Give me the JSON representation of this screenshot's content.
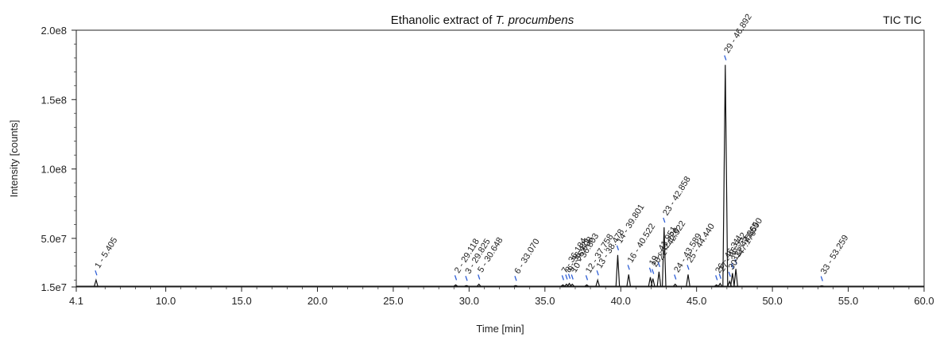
{
  "chart_data": {
    "type": "line",
    "title": "Ethanolic extract of ",
    "title_italic": "T. procumbens",
    "trace_label": "TIC TIC",
    "xlabel": "Time [min]",
    "ylabel": "Intensity [counts]",
    "xlim": [
      4.1,
      60.0
    ],
    "ylim": [
      15000000,
      200000000
    ],
    "x_ticks": [
      4.1,
      10.0,
      15.0,
      20.0,
      25.0,
      30.0,
      35.0,
      40.0,
      45.0,
      50.0,
      55.0,
      60.0
    ],
    "x_tick_labels": [
      "4.1",
      "10.0",
      "15.0",
      "20.0",
      "25.0",
      "30.0",
      "35.0",
      "40.0",
      "45.0",
      "50.0",
      "55.0",
      "60.0"
    ],
    "y_ticks": [
      15000000,
      50000000,
      100000000,
      150000000,
      200000000
    ],
    "y_tick_labels": [
      "1.5e7",
      "5.0e7",
      "1.0e8",
      "1.5e8",
      "2.0e8"
    ],
    "grid": false,
    "colors": {
      "trace": "#111111",
      "marker": "#2f5fd6",
      "axis": "#222222"
    },
    "peaks": [
      {
        "id": "1",
        "rt": 5.405,
        "label": "1 - 5.405",
        "height": 20000000
      },
      {
        "id": "2",
        "rt": 29.118,
        "label": "2 - 29.118",
        "height": 16500000
      },
      {
        "id": "3",
        "rt": 29.825,
        "label": "3 - 29.825",
        "height": 16000000
      },
      {
        "id": "5",
        "rt": 30.648,
        "label": "5 - 30.648",
        "height": 17000000
      },
      {
        "id": "6",
        "rt": 33.07,
        "label": "6 - 33.070",
        "height": 16000000
      },
      {
        "id": "7",
        "rt": 36.184,
        "label": "7 - 36.184",
        "height": 16500000
      },
      {
        "id": "8",
        "rt": 36.421,
        "label": "8 - 36.421",
        "height": 17000000
      },
      {
        "id": "9",
        "rt": 36.608,
        "label": "9 - 36.608",
        "height": 17500000
      },
      {
        "id": "10",
        "rt": 36.803,
        "label": "10 - 36.803",
        "height": 17000000
      },
      {
        "id": "12",
        "rt": 37.758,
        "label": "12 - 37.758",
        "height": 16500000
      },
      {
        "id": "13",
        "rt": 38.478,
        "label": "13 - 38.478",
        "height": 20000000
      },
      {
        "id": "14",
        "rt": 39.801,
        "label": "14 - 39.801",
        "height": 38000000
      },
      {
        "id": "16",
        "rt": 40.522,
        "label": "16 - 40.522",
        "height": 24000000
      },
      {
        "id": "19",
        "rt": 41.951,
        "label": "19 - 41.951",
        "height": 22000000
      },
      {
        "id": "20",
        "rt": 42.12,
        "label": "20 - 42.120",
        "height": 21000000
      },
      {
        "id": "22",
        "rt": 42.522,
        "label": "22 - 42.522",
        "height": 26000000
      },
      {
        "id": "23",
        "rt": 42.858,
        "label": "23 - 42.858",
        "height": 58000000
      },
      {
        "id": "24",
        "rt": 43.589,
        "label": "24 - 43.589",
        "height": 17000000
      },
      {
        "id": "25",
        "rt": 44.44,
        "label": "25 - 44.440",
        "height": 24000000
      },
      {
        "id": "26",
        "rt": 46.311,
        "label": "26 - 46.311",
        "height": 16500000
      },
      {
        "id": "27",
        "rt": 46.552,
        "label": "27 - 46.552",
        "height": 17500000
      },
      {
        "id": "29",
        "rt": 46.892,
        "label": "29 - 46.892",
        "height": 175000000
      },
      {
        "id": "30",
        "rt": 47.176,
        "label": "30 - 47.176",
        "height": 19000000
      },
      {
        "id": "31",
        "rt": 47.365,
        "label": "31 - 47.365",
        "height": 25000000
      },
      {
        "id": "32",
        "rt": 47.59,
        "label": "32 - 47.590",
        "height": 28000000
      },
      {
        "id": "33",
        "rt": 53.259,
        "label": "33 - 53.259",
        "height": 15800000
      }
    ]
  }
}
